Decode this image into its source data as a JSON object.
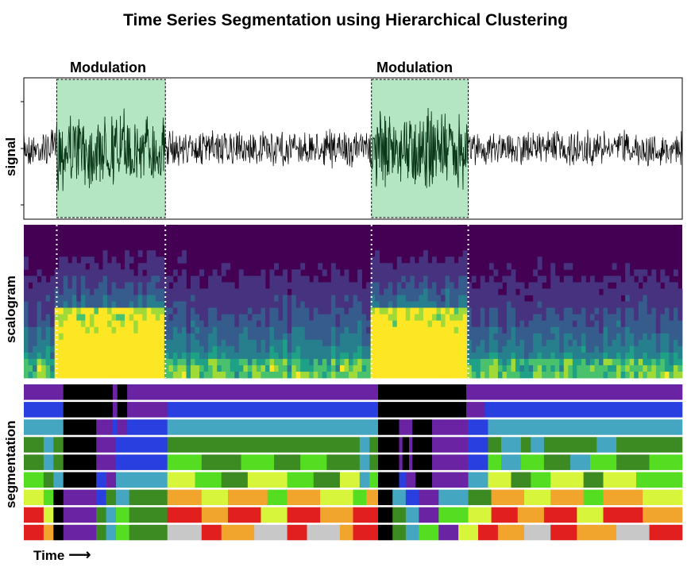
{
  "chart_data": {
    "type": "heatmap",
    "title": "Time Series Segmentation using Hierarchical Clustering",
    "xlabel": "Time",
    "x_arrow": "⟶",
    "panels": [
      {
        "name": "signal",
        "ylabel": "signal",
        "kind": "line"
      },
      {
        "name": "scalogram",
        "ylabel": "scalogram",
        "kind": "heatmap",
        "colormap": "viridis"
      },
      {
        "name": "segmentation",
        "ylabel": "segmentation",
        "kind": "categorical-bands",
        "rows": 9
      }
    ],
    "x_range": [
      0,
      1
    ],
    "annotations": [
      {
        "label": "Modulation",
        "start": 0.05,
        "end": 0.215
      },
      {
        "label": "Modulation",
        "start": 0.528,
        "end": 0.675
      }
    ],
    "segmentation_rows": [
      [
        [
          0,
          "purple"
        ],
        [
          0.06,
          "black"
        ],
        [
          0.135,
          "purple"
        ],
        [
          0.142,
          "black"
        ],
        [
          0.157,
          "purple"
        ],
        [
          0.538,
          "black"
        ],
        [
          0.672,
          "purple"
        ],
        [
          1,
          "end"
        ]
      ],
      [
        [
          0,
          "blue"
        ],
        [
          0.06,
          "black"
        ],
        [
          0.135,
          "purple"
        ],
        [
          0.142,
          "black"
        ],
        [
          0.157,
          "purple"
        ],
        [
          0.218,
          "blue"
        ],
        [
          0.538,
          "black"
        ],
        [
          0.672,
          "purple"
        ],
        [
          0.7,
          "blue"
        ],
        [
          1,
          "end"
        ]
      ],
      [
        [
          0,
          "teal"
        ],
        [
          0.06,
          "black"
        ],
        [
          0.11,
          "purple"
        ],
        [
          0.135,
          "blue"
        ],
        [
          0.142,
          "purple"
        ],
        [
          0.157,
          "blue"
        ],
        [
          0.218,
          "teal"
        ],
        [
          0.538,
          "black"
        ],
        [
          0.57,
          "purple"
        ],
        [
          0.59,
          "black"
        ],
        [
          0.62,
          "purple"
        ],
        [
          0.675,
          "blue"
        ],
        [
          0.705,
          "teal"
        ],
        [
          1,
          "end"
        ]
      ],
      [
        [
          0,
          "darkgreen"
        ],
        [
          0.03,
          "teal"
        ],
        [
          0.045,
          "darkgreen"
        ],
        [
          0.06,
          "black"
        ],
        [
          0.11,
          "purple"
        ],
        [
          0.14,
          "blue"
        ],
        [
          0.218,
          "darkgreen"
        ],
        [
          0.51,
          "teal"
        ],
        [
          0.525,
          "darkgreen"
        ],
        [
          0.538,
          "black"
        ],
        [
          0.57,
          "purple"
        ],
        [
          0.575,
          "black"
        ],
        [
          0.585,
          "purple"
        ],
        [
          0.59,
          "black"
        ],
        [
          0.62,
          "purple"
        ],
        [
          0.675,
          "blue"
        ],
        [
          0.705,
          "darkgreen"
        ],
        [
          0.725,
          "teal"
        ],
        [
          0.755,
          "darkgreen"
        ],
        [
          0.77,
          "teal"
        ],
        [
          0.79,
          "darkgreen"
        ],
        [
          0.87,
          "teal"
        ],
        [
          0.9,
          "darkgreen"
        ],
        [
          1,
          "end"
        ]
      ],
      [
        [
          0,
          "darkgreen"
        ],
        [
          0.03,
          "teal"
        ],
        [
          0.045,
          "darkgreen"
        ],
        [
          0.06,
          "black"
        ],
        [
          0.11,
          "purple"
        ],
        [
          0.14,
          "blue"
        ],
        [
          0.218,
          "lime"
        ],
        [
          0.27,
          "darkgreen"
        ],
        [
          0.33,
          "lime"
        ],
        [
          0.38,
          "darkgreen"
        ],
        [
          0.42,
          "lime"
        ],
        [
          0.46,
          "darkgreen"
        ],
        [
          0.51,
          "teal"
        ],
        [
          0.525,
          "darkgreen"
        ],
        [
          0.538,
          "black"
        ],
        [
          0.57,
          "purple"
        ],
        [
          0.575,
          "black"
        ],
        [
          0.585,
          "purple"
        ],
        [
          0.59,
          "black"
        ],
        [
          0.62,
          "purple"
        ],
        [
          0.675,
          "blue"
        ],
        [
          0.705,
          "lime"
        ],
        [
          0.725,
          "teal"
        ],
        [
          0.755,
          "lime"
        ],
        [
          0.79,
          "darkgreen"
        ],
        [
          0.83,
          "teal"
        ],
        [
          0.86,
          "lime"
        ],
        [
          0.9,
          "darkgreen"
        ],
        [
          0.95,
          "lime"
        ],
        [
          1,
          "end"
        ]
      ],
      [
        [
          0,
          "lime"
        ],
        [
          0.03,
          "darkgreen"
        ],
        [
          0.045,
          "teal"
        ],
        [
          0.06,
          "black"
        ],
        [
          0.11,
          "blue"
        ],
        [
          0.125,
          "purple"
        ],
        [
          0.14,
          "teal"
        ],
        [
          0.218,
          "yellow"
        ],
        [
          0.26,
          "lime"
        ],
        [
          0.3,
          "darkgreen"
        ],
        [
          0.34,
          "yellow"
        ],
        [
          0.4,
          "lime"
        ],
        [
          0.44,
          "darkgreen"
        ],
        [
          0.48,
          "yellow"
        ],
        [
          0.51,
          "teal"
        ],
        [
          0.525,
          "lime"
        ],
        [
          0.538,
          "black"
        ],
        [
          0.57,
          "blue"
        ],
        [
          0.58,
          "purple"
        ],
        [
          0.595,
          "black"
        ],
        [
          0.62,
          "purple"
        ],
        [
          0.675,
          "teal"
        ],
        [
          0.705,
          "yellow"
        ],
        [
          0.74,
          "darkgreen"
        ],
        [
          0.77,
          "lime"
        ],
        [
          0.8,
          "yellow"
        ],
        [
          0.85,
          "darkgreen"
        ],
        [
          0.88,
          "yellow"
        ],
        [
          0.93,
          "lime"
        ],
        [
          1,
          "end"
        ]
      ],
      [
        [
          0,
          "yellow"
        ],
        [
          0.03,
          "lime"
        ],
        [
          0.045,
          "black"
        ],
        [
          0.06,
          "purple"
        ],
        [
          0.11,
          "blue"
        ],
        [
          0.125,
          "darkgreen"
        ],
        [
          0.14,
          "teal"
        ],
        [
          0.16,
          "darkgreen"
        ],
        [
          0.218,
          "orange"
        ],
        [
          0.27,
          "yellow"
        ],
        [
          0.31,
          "orange"
        ],
        [
          0.37,
          "lime"
        ],
        [
          0.4,
          "orange"
        ],
        [
          0.45,
          "yellow"
        ],
        [
          0.5,
          "lime"
        ],
        [
          0.52,
          "orange"
        ],
        [
          0.538,
          "black"
        ],
        [
          0.56,
          "teal"
        ],
        [
          0.58,
          "blue"
        ],
        [
          0.6,
          "purple"
        ],
        [
          0.63,
          "teal"
        ],
        [
          0.675,
          "darkgreen"
        ],
        [
          0.71,
          "orange"
        ],
        [
          0.76,
          "yellow"
        ],
        [
          0.8,
          "orange"
        ],
        [
          0.85,
          "lime"
        ],
        [
          0.88,
          "orange"
        ],
        [
          0.94,
          "yellow"
        ],
        [
          1,
          "end"
        ]
      ],
      [
        [
          0,
          "red"
        ],
        [
          0.03,
          "yellow"
        ],
        [
          0.045,
          "black"
        ],
        [
          0.06,
          "purple"
        ],
        [
          0.11,
          "darkgreen"
        ],
        [
          0.125,
          "teal"
        ],
        [
          0.14,
          "lime"
        ],
        [
          0.16,
          "darkgreen"
        ],
        [
          0.218,
          "red"
        ],
        [
          0.27,
          "orange"
        ],
        [
          0.31,
          "red"
        ],
        [
          0.36,
          "yellow"
        ],
        [
          0.4,
          "red"
        ],
        [
          0.45,
          "orange"
        ],
        [
          0.5,
          "red"
        ],
        [
          0.538,
          "black"
        ],
        [
          0.56,
          "darkgreen"
        ],
        [
          0.58,
          "teal"
        ],
        [
          0.6,
          "purple"
        ],
        [
          0.63,
          "lime"
        ],
        [
          0.675,
          "yellow"
        ],
        [
          0.71,
          "red"
        ],
        [
          0.75,
          "orange"
        ],
        [
          0.79,
          "red"
        ],
        [
          0.84,
          "yellow"
        ],
        [
          0.88,
          "red"
        ],
        [
          0.94,
          "orange"
        ],
        [
          1,
          "end"
        ]
      ],
      [
        [
          0,
          "red"
        ],
        [
          0.03,
          "orange"
        ],
        [
          0.045,
          "black"
        ],
        [
          0.06,
          "purple"
        ],
        [
          0.11,
          "darkgreen"
        ],
        [
          0.125,
          "teal"
        ],
        [
          0.14,
          "lime"
        ],
        [
          0.16,
          "darkgreen"
        ],
        [
          0.218,
          "gray"
        ],
        [
          0.27,
          "red"
        ],
        [
          0.3,
          "orange"
        ],
        [
          0.35,
          "gray"
        ],
        [
          0.4,
          "red"
        ],
        [
          0.43,
          "gray"
        ],
        [
          0.48,
          "orange"
        ],
        [
          0.5,
          "red"
        ],
        [
          0.538,
          "black"
        ],
        [
          0.56,
          "darkgreen"
        ],
        [
          0.58,
          "teal"
        ],
        [
          0.6,
          "lime"
        ],
        [
          0.63,
          "purple"
        ],
        [
          0.66,
          "yellow"
        ],
        [
          0.69,
          "red"
        ],
        [
          0.72,
          "orange"
        ],
        [
          0.76,
          "gray"
        ],
        [
          0.8,
          "red"
        ],
        [
          0.84,
          "orange"
        ],
        [
          0.9,
          "gray"
        ],
        [
          0.95,
          "red"
        ],
        [
          1,
          "end"
        ]
      ]
    ],
    "colors": {
      "purple": "#6a23a3",
      "black": "#000000",
      "blue": "#2a3fe0",
      "teal": "#44a6c0",
      "darkgreen": "#3c8a22",
      "lime": "#55dd22",
      "yellow": "#d7f53a",
      "orange": "#f2a52d",
      "red": "#e21f1f",
      "gray": "#c8c8c8",
      "modulation_fill": "#b5e6c3",
      "signal": "#000000",
      "signal_modulated": "#063a17"
    }
  }
}
